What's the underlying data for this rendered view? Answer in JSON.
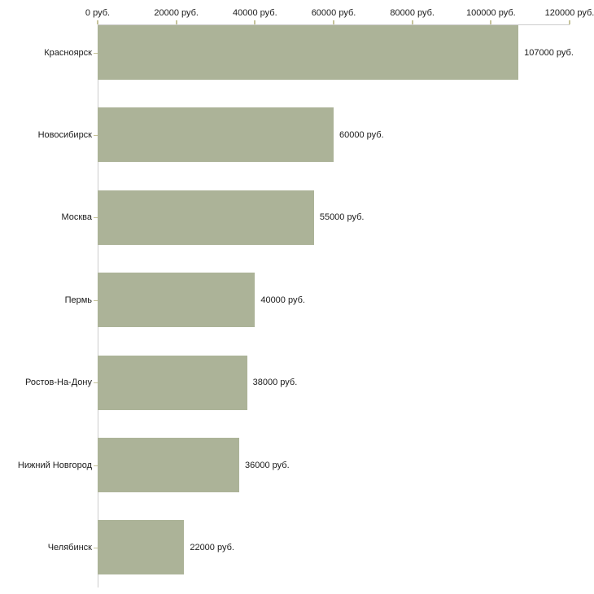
{
  "chart_data": {
    "type": "bar",
    "orientation": "horizontal",
    "title": "",
    "xlabel": "",
    "ylabel": "",
    "unit": "руб.",
    "categories": [
      "Красноярск",
      "Новосибирск",
      "Москва",
      "Пермь",
      "Ростов-На-Дону",
      "Нижний Новгород",
      "Челябинск"
    ],
    "values": [
      107000,
      60000,
      55000,
      40000,
      38000,
      36000,
      22000
    ],
    "value_labels": [
      "107000 руб.",
      "60000 руб.",
      "55000 руб.",
      "40000 руб.",
      "38000 руб.",
      "36000 руб.",
      "22000 руб."
    ],
    "x_ticks": [
      0,
      20000,
      40000,
      60000,
      80000,
      100000,
      120000
    ],
    "x_tick_labels": [
      "0 руб.",
      "20000 руб.",
      "40000 руб.",
      "60000 руб.",
      "80000 руб.",
      "100000 руб.",
      "120000 руб."
    ],
    "xlim": [
      0,
      120000
    ],
    "grid": false,
    "legend": "none",
    "axis_position": "top-left",
    "bar_color": "#acb398",
    "axis_color": "#cccccc",
    "tick_color": "#c6c39a",
    "text_color": "#1a1a1a",
    "background": "#ffffff"
  }
}
